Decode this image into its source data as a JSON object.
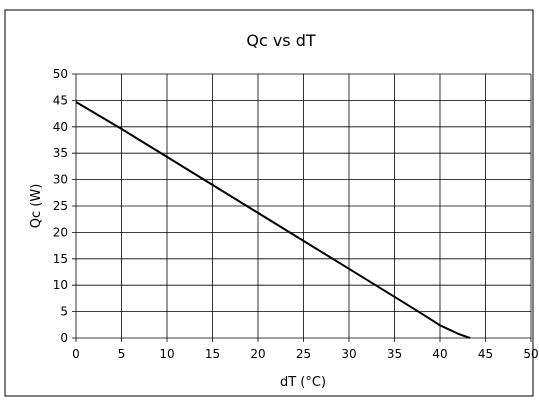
{
  "chart_data": {
    "type": "line",
    "title": "Qc vs dT",
    "xlabel": "dT (°C)",
    "ylabel": "Qc (W)",
    "xlim": [
      0,
      50
    ],
    "ylim": [
      0,
      50
    ],
    "xticks": [
      0,
      5,
      10,
      15,
      20,
      25,
      30,
      35,
      40,
      45,
      50
    ],
    "yticks": [
      0,
      5,
      10,
      15,
      20,
      25,
      30,
      35,
      40,
      45,
      50
    ],
    "grid": true,
    "series": [
      {
        "color": "#000000",
        "x": [
          0,
          5,
          10,
          15,
          20,
          25,
          30,
          35,
          38,
          40,
          42,
          43.3
        ],
        "y": [
          44.7,
          39.6,
          34.3,
          29.0,
          23.7,
          18.4,
          13.1,
          7.8,
          4.6,
          2.4,
          0.8,
          0
        ]
      }
    ]
  }
}
